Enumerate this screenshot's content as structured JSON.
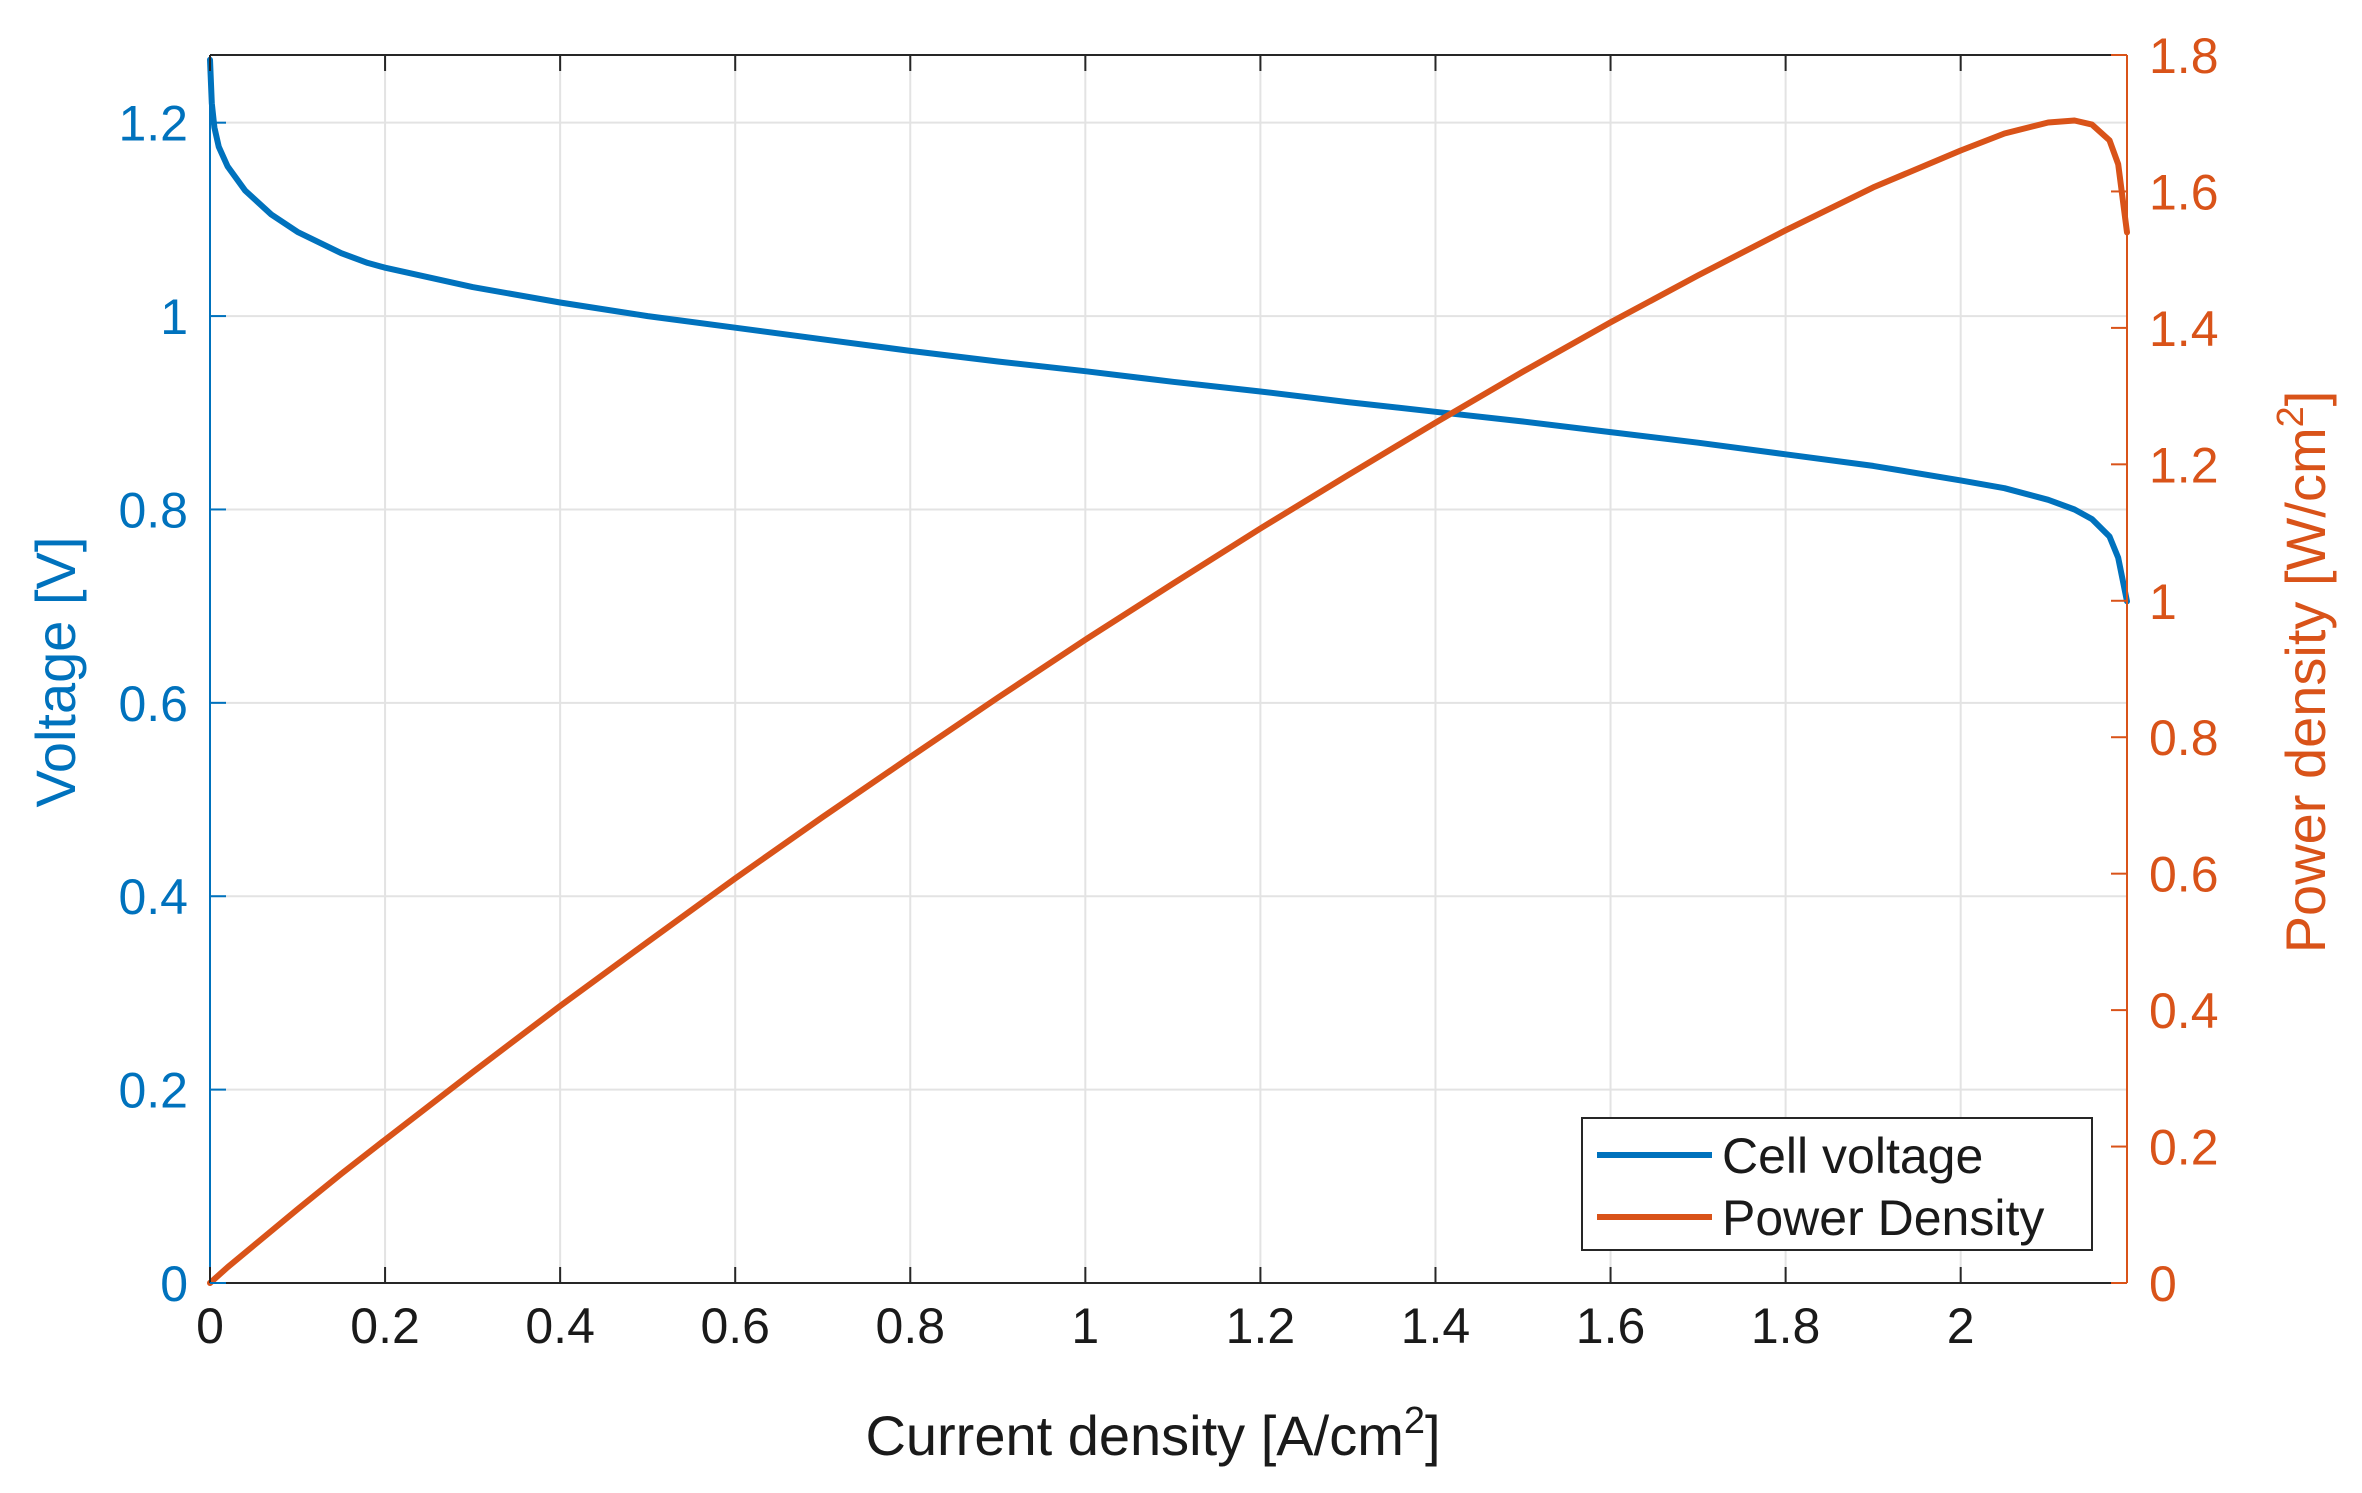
{
  "chart_data": {
    "type": "line",
    "xlabel": "Current density [A/cm",
    "xlabel_sup": "2",
    "xlabel_end": "]",
    "ylabel_left": "Voltage [V]",
    "ylabel_right": "Power density [W/cm",
    "ylabel_right_sup": "2",
    "ylabel_right_end": "]",
    "xlim": [
      0,
      2.19
    ],
    "ylim_left": [
      0,
      1.27
    ],
    "ylim_right": [
      0,
      1.8
    ],
    "x_ticks": [
      0,
      0.2,
      0.4,
      0.6,
      0.8,
      1,
      1.2,
      1.4,
      1.6,
      1.8,
      2
    ],
    "x_tick_labels": [
      "0",
      "0.2",
      "0.4",
      "0.6",
      "0.8",
      "1",
      "1.2",
      "1.4",
      "1.6",
      "1.8",
      "2"
    ],
    "y_left_ticks": [
      0,
      0.2,
      0.4,
      0.6,
      0.8,
      1,
      1.2
    ],
    "y_left_tick_labels": [
      "0",
      "0.2",
      "0.4",
      "0.6",
      "0.8",
      "1",
      "1.2"
    ],
    "y_right_ticks": [
      0,
      0.2,
      0.4,
      0.6,
      0.8,
      1,
      1.2,
      1.4,
      1.6,
      1.8
    ],
    "y_right_tick_labels": [
      "0",
      "0.2",
      "0.4",
      "0.6",
      "0.8",
      "1",
      "1.2",
      "1.4",
      "1.6",
      "1.8"
    ],
    "grid": true,
    "legend_position": "bottom-right",
    "series": [
      {
        "name": "Cell voltage",
        "axis": "left",
        "color": "#0072BD",
        "x": [
          0,
          0.002,
          0.005,
          0.01,
          0.02,
          0.04,
          0.07,
          0.1,
          0.15,
          0.18,
          0.2,
          0.3,
          0.4,
          0.5,
          0.6,
          0.7,
          0.8,
          0.9,
          1.0,
          1.1,
          1.2,
          1.3,
          1.4,
          1.5,
          1.6,
          1.7,
          1.8,
          1.9,
          2.0,
          2.05,
          2.1,
          2.13,
          2.15,
          2.17,
          2.18,
          2.19
        ],
        "y": [
          1.265,
          1.22,
          1.195,
          1.175,
          1.155,
          1.13,
          1.105,
          1.087,
          1.065,
          1.055,
          1.05,
          1.03,
          1.014,
          1.0,
          0.988,
          0.976,
          0.964,
          0.953,
          0.943,
          0.932,
          0.922,
          0.911,
          0.901,
          0.891,
          0.88,
          0.869,
          0.857,
          0.845,
          0.83,
          0.822,
          0.81,
          0.8,
          0.79,
          0.772,
          0.75,
          0.705
        ]
      },
      {
        "name": "Power Density",
        "axis": "right",
        "color": "#D95319",
        "x": [
          0,
          0.02,
          0.05,
          0.1,
          0.15,
          0.2,
          0.3,
          0.4,
          0.5,
          0.6,
          0.7,
          0.8,
          0.9,
          1.0,
          1.1,
          1.2,
          1.3,
          1.4,
          1.5,
          1.6,
          1.7,
          1.8,
          1.9,
          2.0,
          2.05,
          2.1,
          2.13,
          2.15,
          2.17,
          2.18,
          2.19
        ],
        "y": [
          0,
          0.023,
          0.055,
          0.108,
          0.16,
          0.21,
          0.309,
          0.406,
          0.5,
          0.593,
          0.683,
          0.771,
          0.858,
          0.943,
          1.025,
          1.106,
          1.184,
          1.261,
          1.336,
          1.408,
          1.477,
          1.543,
          1.606,
          1.66,
          1.685,
          1.701,
          1.704,
          1.698,
          1.675,
          1.64,
          1.54
        ]
      }
    ]
  }
}
